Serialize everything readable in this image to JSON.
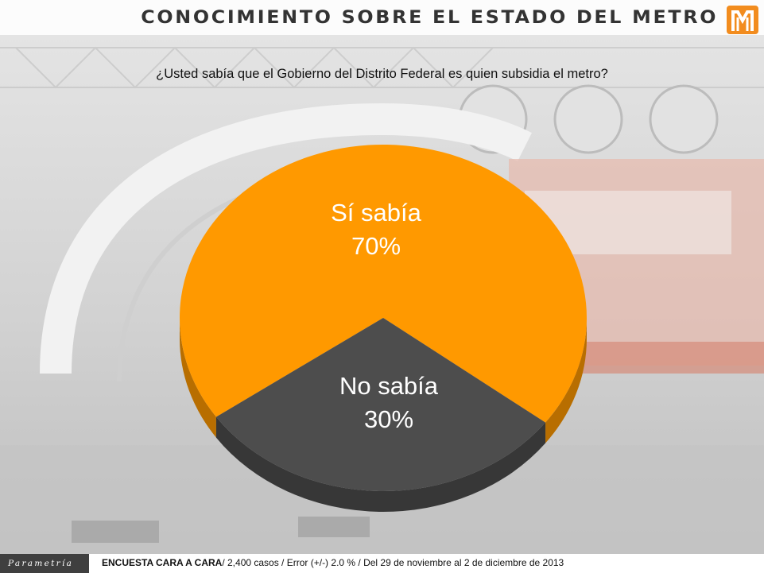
{
  "header": {
    "title": "CONOCIMIENTO SOBRE EL ESTADO DEL METRO",
    "logo": "metro-logo-icon"
  },
  "question": "¿Usted sabía que el Gobierno del Distrito Federal es quien subsidia el metro?",
  "colors": {
    "orange": "#FF9900",
    "gray": "#4D4D4D",
    "brand_bg": "#3F3F3F"
  },
  "chart_data": {
    "type": "pie",
    "title": "",
    "series": [
      {
        "name": "Sí sabía",
        "value": 70,
        "label": "70%",
        "color": "#FF9900"
      },
      {
        "name": "No sabía",
        "value": 30,
        "label": "30%",
        "color": "#4D4D4D"
      }
    ]
  },
  "footer": {
    "brand": "Parametría",
    "survey_label": "ENCUESTA CARA A CARA",
    "survey_details": "/ 2,400 casos / Error (+/-) 2.0 % / Del 29 de noviembre al 2 de diciembre de 2013"
  }
}
